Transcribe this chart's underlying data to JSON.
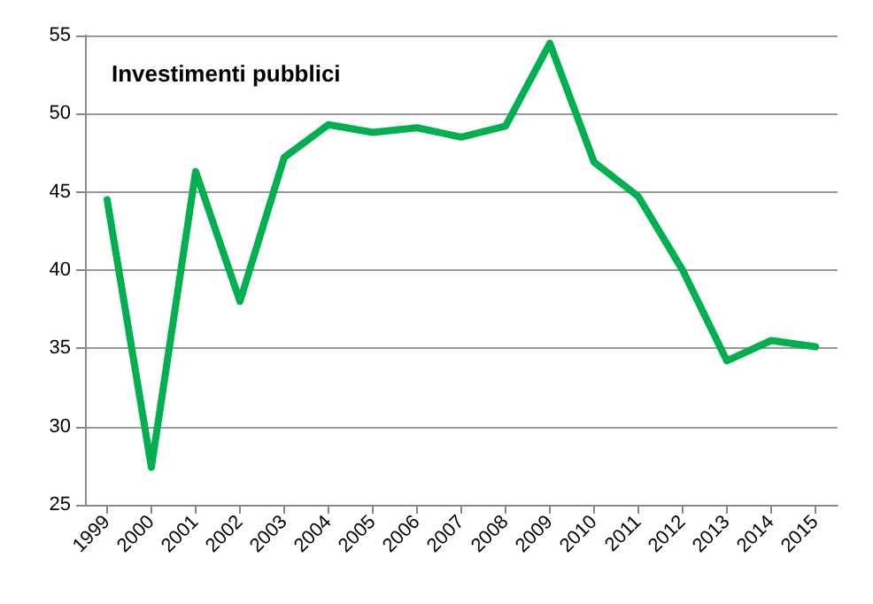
{
  "chart_data": {
    "type": "line",
    "title": "Investimenti pubblici",
    "categories": [
      "1999",
      "2000",
      "2001",
      "2002",
      "2003",
      "2004",
      "2005",
      "2006",
      "2007",
      "2008",
      "2009",
      "2010",
      "2011",
      "2012",
      "2013",
      "2014",
      "2015"
    ],
    "series": [
      {
        "color": "#00b050",
        "values": [
          44.5,
          27.4,
          46.3,
          38,
          47.2,
          49.3,
          48.8,
          49.1,
          48.5,
          49.2,
          54.5,
          46.9,
          44.7,
          40,
          34.2,
          35.5,
          35.1
        ]
      }
    ],
    "ylim": [
      25,
      55
    ],
    "yticks": [
      25,
      30,
      35,
      40,
      45,
      50,
      55
    ],
    "grid": "y",
    "marker": "none",
    "line_style": "solid"
  }
}
